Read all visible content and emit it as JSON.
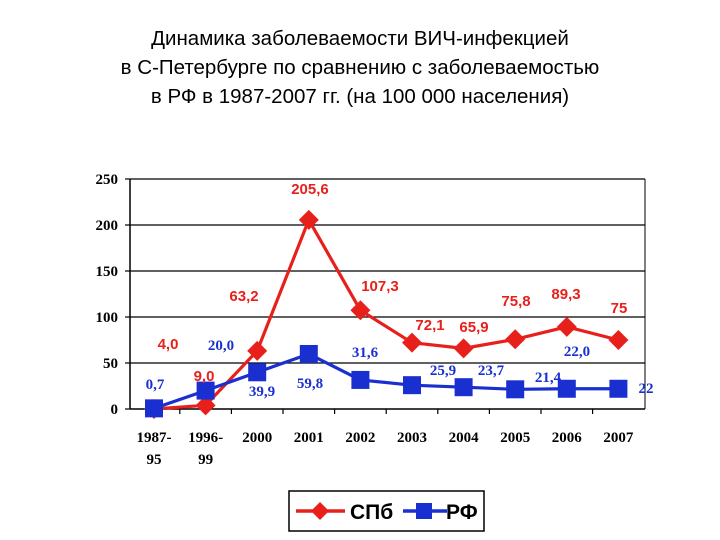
{
  "title_lines": [
    "Динамика заболеваемости ВИЧ-инфекцией",
    "в С-Петербурге по сравнению с заболеваемостью",
    "в РФ в 1987-2007 гг. (на 100 000 населения)"
  ],
  "chart_data": {
    "type": "line",
    "title": "Динамика заболеваемости ВИЧ-инфекцией в С-Петербурге по сравнению с заболеваемостью в РФ в 1987-2007 гг. (на 100 000 населения)",
    "categories": [
      [
        "1987-",
        "95"
      ],
      [
        "1996-",
        "99"
      ],
      [
        "2000"
      ],
      [
        "2001"
      ],
      [
        "2002"
      ],
      [
        "2003"
      ],
      [
        "2004"
      ],
      [
        "2005"
      ],
      [
        "2006"
      ],
      [
        "2007"
      ]
    ],
    "ylim": [
      0,
      250
    ],
    "yticks": [
      0,
      50,
      100,
      150,
      200,
      250
    ],
    "grid": true,
    "legend_position": "bottom",
    "series": [
      {
        "name": "СПб",
        "color": "#e8201c",
        "marker": "diamond",
        "values": [
          0,
          4.0,
          63.2,
          205.6,
          107.3,
          72.1,
          65.9,
          75.8,
          89.3,
          75
        ],
        "labels": [
          "",
          "4,0",
          "63,2",
          "205,6",
          "107,3",
          "72,1",
          "65,9",
          "75,8",
          "89,3",
          "75"
        ]
      },
      {
        "name": "РФ",
        "color": "#1a2fd0",
        "marker": "square",
        "values": [
          0.7,
          20.0,
          39.9,
          59.8,
          31.6,
          25.9,
          23.7,
          21.4,
          22.0,
          22
        ],
        "labels": [
          "0,7",
          "20,0",
          "39,9",
          "59,8",
          "31,6",
          "25,9",
          "23,7",
          "21,4",
          "22,0",
          "22"
        ]
      }
    ],
    "extra_labels": [
      {
        "series": 0,
        "text": "9,0"
      }
    ]
  }
}
